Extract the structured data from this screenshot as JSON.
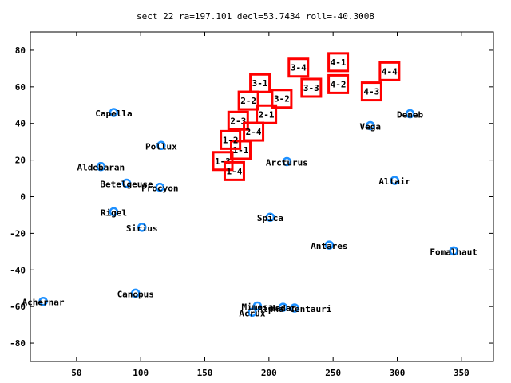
{
  "chart_data": {
    "type": "scatter",
    "title": "sect 22 ra=197.101 decl=53.7434 roll=-40.3008",
    "xlabel": "",
    "ylabel": "",
    "xlim": [
      14,
      375
    ],
    "ylim": [
      -90,
      90
    ],
    "x_ticks": [
      50,
      100,
      150,
      200,
      250,
      300,
      350
    ],
    "y_ticks": [
      -80,
      -60,
      -40,
      -20,
      0,
      20,
      40,
      60,
      80
    ],
    "grid": false,
    "colors": {
      "star": "#1e90ff",
      "box": "#ff0000",
      "axis": "#000000"
    },
    "stars": [
      {
        "name": "Capella",
        "ra": 79,
        "dec": 46
      },
      {
        "name": "Pollux",
        "ra": 116,
        "dec": 28
      },
      {
        "name": "Aldebaran",
        "ra": 69,
        "dec": 16.5
      },
      {
        "name": "Betelgeuse",
        "ra": 89,
        "dec": 7.4
      },
      {
        "name": "Procyon",
        "ra": 115,
        "dec": 5.2
      },
      {
        "name": "Rigel",
        "ra": 79,
        "dec": -8.2
      },
      {
        "name": "Sirius",
        "ra": 101,
        "dec": -16.7
      },
      {
        "name": "Canopus",
        "ra": 96,
        "dec": -52.7
      },
      {
        "name": "Achernar",
        "ra": 24,
        "dec": -57.2
      },
      {
        "name": "Arcturus",
        "ra": 214,
        "dec": 19.2
      },
      {
        "name": "Spica",
        "ra": 201,
        "dec": -11.2
      },
      {
        "name": "Antares",
        "ra": 247,
        "dec": -26.4
      },
      {
        "name": "Vega",
        "ra": 279,
        "dec": 38.8
      },
      {
        "name": "Deneb",
        "ra": 310,
        "dec": 45.3
      },
      {
        "name": "Altair",
        "ra": 298,
        "dec": 8.9
      },
      {
        "name": "Fomalhaut",
        "ra": 344,
        "dec": -29.6
      },
      {
        "name": "Mimosa",
        "ra": 191,
        "dec": -59.7
      },
      {
        "name": "Acrux",
        "ra": 187,
        "dec": -63.1
      },
      {
        "name": "Hadar",
        "ra": 211,
        "dec": -60.4
      },
      {
        "name": "Alpha Centauri",
        "ra": 220,
        "dec": -60.8
      }
    ],
    "boxes": [
      {
        "label": "1-1",
        "ra": 178,
        "dec": 25.5
      },
      {
        "label": "1-2",
        "ra": 170,
        "dec": 31
      },
      {
        "label": "1-3",
        "ra": 164,
        "dec": 19.5
      },
      {
        "label": "1-4",
        "ra": 173,
        "dec": 14
      },
      {
        "label": "2-1",
        "ra": 198,
        "dec": 45
      },
      {
        "label": "2-2",
        "ra": 184,
        "dec": 52.5
      },
      {
        "label": "2-3",
        "ra": 176,
        "dec": 41.5
      },
      {
        "label": "2-4",
        "ra": 188,
        "dec": 35.5
      },
      {
        "label": "3-1",
        "ra": 193,
        "dec": 62
      },
      {
        "label": "3-2",
        "ra": 210,
        "dec": 53.5
      },
      {
        "label": "3-3",
        "ra": 233,
        "dec": 59.5
      },
      {
        "label": "3-4",
        "ra": 223,
        "dec": 70.5
      },
      {
        "label": "4-1",
        "ra": 254,
        "dec": 73.5
      },
      {
        "label": "4-2",
        "ra": 254,
        "dec": 61.5
      },
      {
        "label": "4-3",
        "ra": 280,
        "dec": 57.5
      },
      {
        "label": "4-4",
        "ra": 294,
        "dec": 68.5
      }
    ],
    "labels": [
      {
        "text": "Capella",
        "ra": 79,
        "dec": 46,
        "anchor": "middle",
        "dx": 0,
        "dy": 5
      },
      {
        "text": "Pollux",
        "ra": 116,
        "dec": 28,
        "anchor": "middle",
        "dx": 0,
        "dy": 5
      },
      {
        "text": "Aldebaran",
        "ra": 69,
        "dec": 16.5,
        "anchor": "middle",
        "dx": 0,
        "dy": 5
      },
      {
        "text": "Betelgeuse",
        "ra": 89,
        "dec": 7.4,
        "anchor": "middle",
        "dx": 0,
        "dy": 5
      },
      {
        "text": "Procyon",
        "ra": 115,
        "dec": 5.2,
        "anchor": "middle",
        "dx": 0,
        "dy": 5
      },
      {
        "text": "Rigel",
        "ra": 79,
        "dec": -8.2,
        "anchor": "middle",
        "dx": 0,
        "dy": 5
      },
      {
        "text": "Sirius",
        "ra": 101,
        "dec": -16.7,
        "anchor": "middle",
        "dx": 0,
        "dy": 5
      },
      {
        "text": "Canopus",
        "ra": 96,
        "dec": -52.7,
        "anchor": "middle",
        "dx": 0,
        "dy": 5
      },
      {
        "text": "Achernar",
        "ra": 24,
        "dec": -57.2,
        "anchor": "middle",
        "dx": 0,
        "dy": 5
      },
      {
        "text": "Arcturus",
        "ra": 214,
        "dec": 19.2,
        "anchor": "middle",
        "dx": 0,
        "dy": 5
      },
      {
        "text": "Spica",
        "ra": 201,
        "dec": -11.2,
        "anchor": "middle",
        "dx": 0,
        "dy": 5
      },
      {
        "text": "Antares",
        "ra": 247,
        "dec": -26.4,
        "anchor": "middle",
        "dx": 0,
        "dy": 5
      },
      {
        "text": "Vega",
        "ra": 279,
        "dec": 38.8,
        "anchor": "middle",
        "dx": 0,
        "dy": 5
      },
      {
        "text": "Deneb",
        "ra": 310,
        "dec": 45.3,
        "anchor": "middle",
        "dx": 0,
        "dy": 5
      },
      {
        "text": "Altair",
        "ra": 298,
        "dec": 8.9,
        "anchor": "middle",
        "dx": 0,
        "dy": 5
      },
      {
        "text": "Fomalhaut",
        "ra": 344,
        "dec": -29.6,
        "anchor": "middle",
        "dx": 0,
        "dy": 5
      },
      {
        "text": "Mimosa",
        "ra": 191,
        "dec": -59.7,
        "anchor": "middle",
        "dx": 0,
        "dy": 5
      },
      {
        "text": "Acrux",
        "ra": 187,
        "dec": -63.1,
        "anchor": "middle",
        "dx": 0,
        "dy": 5
      },
      {
        "text": "Hadar",
        "ra": 211,
        "dec": -60.4,
        "anchor": "middle",
        "dx": 0,
        "dy": 5
      },
      {
        "text": "Alpha Centauri",
        "ra": 220,
        "dec": -60.8,
        "anchor": "middle",
        "dx": 0,
        "dy": 5
      }
    ]
  }
}
